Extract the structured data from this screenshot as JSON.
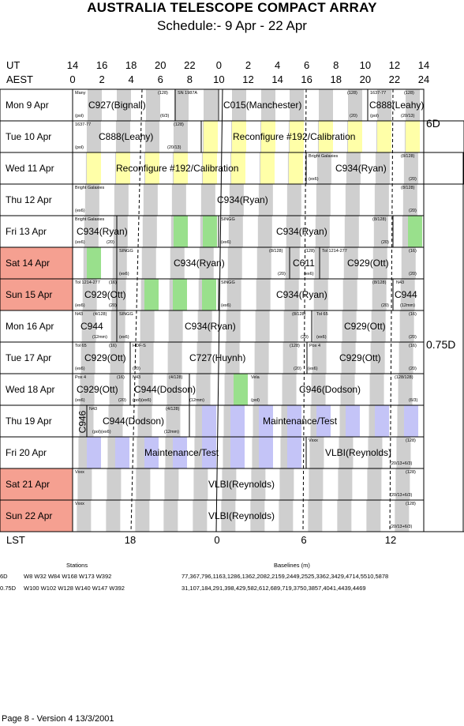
{
  "title": "AUSTRALIA TELESCOPE COMPACT ARRAY",
  "subtitle": "Schedule:- 9  Apr - 22 Apr",
  "axes": {
    "ut_label": "UT",
    "aest_label": "AEST",
    "lst_label": "LST",
    "ut_ticks": [
      "14",
      "16",
      "18",
      "20",
      "22",
      "0",
      "2",
      "4",
      "6",
      "8",
      "10",
      "12",
      "14"
    ],
    "aest_ticks": [
      "0",
      "2",
      "4",
      "6",
      "8",
      "10",
      "12",
      "14",
      "16",
      "18",
      "20",
      "22",
      "24"
    ],
    "lst_ticks": [
      "18",
      "0",
      "6",
      "12"
    ]
  },
  "days": [
    {
      "label": "Mon    9  Apr",
      "weekend": false
    },
    {
      "label": "Tue    10 Apr",
      "weekend": false
    },
    {
      "label": "Wed   11 Apr",
      "weekend": false
    },
    {
      "label": "Thu    12 Apr",
      "weekend": false
    },
    {
      "label": "Fri     13 Apr",
      "weekend": false
    },
    {
      "label": "Sat    14 Apr",
      "weekend": true
    },
    {
      "label": "Sun   15 Apr",
      "weekend": true
    },
    {
      "label": "Mon   16 Apr",
      "weekend": false
    },
    {
      "label": "Tue    17 Apr",
      "weekend": false
    },
    {
      "label": "Wed   18 Apr",
      "weekend": false
    },
    {
      "label": "Thu    19 Apr",
      "weekend": false
    },
    {
      "label": "Fri     20 Apr",
      "weekend": false
    },
    {
      "label": "Sat    21 Apr",
      "weekend": true
    },
    {
      "label": "Sun   22 Apr",
      "weekend": true
    }
  ],
  "configs": [
    "6D",
    "0.75D"
  ],
  "programs": {
    "c927": "C927(Bignall)",
    "c015": "C015(Manchester)",
    "c888a": "C888(Leahy)",
    "c888b": "C888(Leahy)",
    "reconf1": "Reconfigure #192/Calibration",
    "reconf2": "Reconfigure #192/Calibration",
    "c934_wed": "C934(Ryan)",
    "c934_thu": "C934(Ryan)",
    "c934_fri1": "C934(Ryan)",
    "c934_fri2": "C934(Ryan)",
    "c934_sat": "C934(Ryan)",
    "c611": "C611",
    "c929_sat": "C929(Ott)",
    "c929_sun": "C929(Ott)",
    "c934_sun": "C934(Ryan)",
    "c944_sun": "C944",
    "c944_mon": "C944",
    "c934_mon": "C934(Ryan)",
    "c929_mon": "C929(Ott)",
    "c929_tue1": "C929(Ott)",
    "c727": "C727(Huynh)",
    "c929_tue2": "C929(Ott)",
    "c929_wed": "C929(Ott)",
    "c944_wed": "C944(Dodson)",
    "c946_wed": "C946(Dodson)",
    "c946_thu": "C946",
    "c944_thu": "C944(Dodson)",
    "maint_thu": "Maintenance/Test",
    "maint_fri": "Maintenance/Test",
    "vlbi_fri": "VLBI(Reynolds)",
    "vlbi_sat": "VLBI(Reynolds)",
    "vlbi_sun": "VLBI(Reynolds)"
  },
  "notes": {
    "mon_many": "Many",
    "mon_128a": "(128)",
    "mon_sn": "SN 1987A",
    "mon_pol": "(pol)",
    "mon_633": "(6/3)",
    "mon_128b": "(128)",
    "mon_1637": "1637-77",
    "mon_128c": "(128)",
    "mon_20": "(20)",
    "mon_pol2": "(pol)",
    "mon_2013": "(20/13)",
    "tue_1637": "1637-77",
    "tue_128": "(128)",
    "tue_pol": "(pol)",
    "tue_2013": "(20/13)",
    "wed_bg": "Bright Galaxies",
    "wed_8128": "(8/128)",
    "wed_ex6": "(ex6)",
    "wed_20": "(20)",
    "thu_bg": "Bright Galaxies",
    "thu_8128": "(8/128)",
    "thu_ex6": "(ex6)",
    "thu_20": "(20)",
    "fri_bg": "Bright Galaxies",
    "fri_ex6": "(ex6)",
    "fri_20": "(20)",
    "fri_singg": "SINGG",
    "fri_ex6b": "(ex6)",
    "fri_8128": "(8/128)",
    "fri_20b": "(20)",
    "sat_singg": "SINGG",
    "sat_ex6": "(ex6)",
    "sat_8128": "(8/128)",
    "sat_20": "(20)",
    "sat_128": "(128)",
    "sat_ex6b": "(ex6)",
    "sat_tol": "Tol 1214-277",
    "sat_16": "(16)",
    "sat_20b": "(20)",
    "sun_tol": "Tol 1214-277",
    "sun_16": "(16)",
    "sun_ex6": "(ex6)",
    "sun_20": "(20)",
    "sun_singg": "SINGG",
    "sun_ex6b": "(ex6)",
    "sun_8128": "(8/128)",
    "sun_20b": "(20)",
    "sun_n43": "N43",
    "sun_12mm": "(12mm)",
    "mon2_n43": "N43",
    "mon2_4128": "(4/128)",
    "mon2_singg": "SINGG",
    "mon2_12mm": "(12mm)",
    "mon2_ex6": "(ex6)",
    "mon2_8128": "(8/128)",
    "mon2_20": "(20)",
    "mon2_tol65": "Tol 65",
    "mon2_ex6b": "(ex6)",
    "mon2_16": "(16)",
    "mon2_20b": "(20)",
    "tue2_tol65": "Tol 65",
    "tue2_16": "(16)",
    "tue2_hdfs": "HDF-S",
    "tue2_ex6": "(ex6)",
    "tue2_20": "(20)",
    "tue2_128": "(128)",
    "tue2_20b": "(20)",
    "tue2_pox4": "Pox 4",
    "tue2_ex6b": "(ex6)",
    "tue2_16b": "(16)",
    "tue2_20c": "(20)",
    "wed2_pox4": "Pox 4",
    "wed2_16": "(16)",
    "wed2_n43": "N43",
    "wed2_4128": "(4/128)",
    "wed2_ex6": "(ex6)",
    "wed2_20": "(20)",
    "wed2_polex6": "(pol)(ex6)",
    "wed2_12mm": "(12mm)",
    "wed2_vela": "Vela",
    "wed2_pol": "(pol)",
    "wed2_128128": "(128/128)",
    "wed2_63": "(6/3)",
    "thu2_n43": "N43",
    "thu2_4128": "(4/128)",
    "thu2_polex6": "(pol)(ex6)",
    "thu2_12mm": "(12mm)",
    "fri2_vxxx": "Vxxx",
    "fri2_128": "(128)",
    "fri2_2013": "(20/13+6/3)",
    "sat2_vxxx": "Vxxx",
    "sat2_128": "(128)",
    "sat2_2013": "(20/13+6/3)",
    "sun2_vxxx": "Vxxx",
    "sun2_128": "(128)",
    "sun2_2013": "(20/13+6/3)"
  },
  "footer": {
    "stations_header": "Stations",
    "baselines_header": "Baselines (m)",
    "rows": [
      {
        "config": "6D",
        "stations": "W8 W32 W84 W168 W173 W392",
        "baselines": "77,367,796,1163,1286,1362,2082,2159,2449,2525,3362,3429,4714,5510,5878"
      },
      {
        "config": "0.75D",
        "stations": "W100 W102 W128 W140 W147 W392",
        "baselines": "31,107,184,291,398,429,582,612,689,719,3750,3857,4041,4439,4469"
      }
    ],
    "page_info": "Page 8 - Version 4  13/3/2001"
  },
  "colors": {
    "gray": "#cfcfcf",
    "yellow": "#ffffa8",
    "green": "#99e08c",
    "lavender": "#c4c4f7",
    "weekend": "#f5a091"
  }
}
